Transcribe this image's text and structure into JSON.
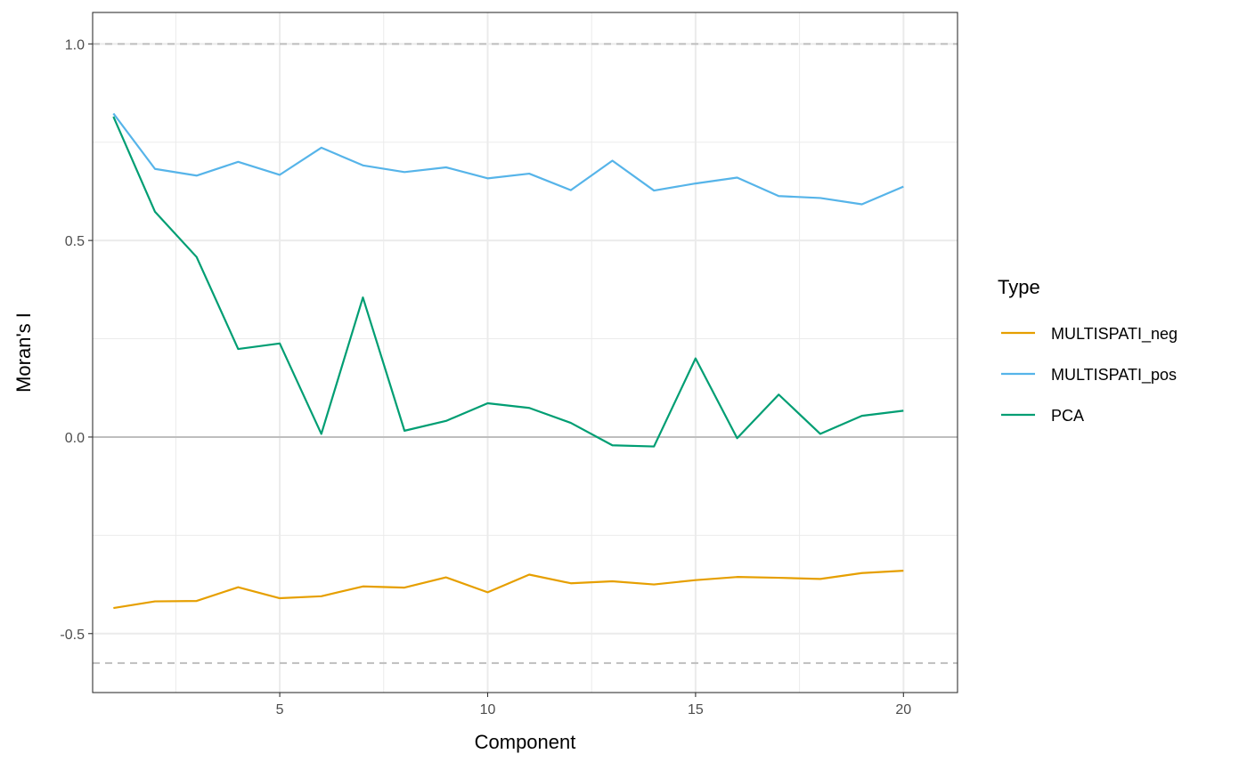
{
  "chart_data": {
    "type": "line",
    "xlabel": "Component",
    "ylabel": "Moran's I",
    "xlim": [
      0.5,
      21.3
    ],
    "ylim": [
      -0.65,
      1.08
    ],
    "x_ticks": [
      5,
      10,
      15,
      20
    ],
    "x_tick_labels": [
      "5",
      "10",
      "15",
      "20"
    ],
    "y_ticks": [
      -0.5,
      0.0,
      0.5,
      1.0
    ],
    "y_tick_labels": [
      "-0.5",
      "0.0",
      "0.5",
      "1.0"
    ],
    "grid": true,
    "reference_lines": [
      {
        "y": 1.0,
        "style": "dashed",
        "color": "#bebebe"
      },
      {
        "y": 0.0,
        "style": "solid",
        "color": "#bebebe"
      },
      {
        "y": -0.575,
        "style": "dashed",
        "color": "#bebebe"
      }
    ],
    "legend": {
      "title": "Type",
      "placement": "right"
    },
    "x": [
      1,
      2,
      3,
      4,
      5,
      6,
      7,
      8,
      9,
      10,
      11,
      12,
      13,
      14,
      15,
      16,
      17,
      18,
      19,
      20
    ],
    "series": [
      {
        "name": "MULTISPATI_neg",
        "color": "#E69F00",
        "values": [
          -0.435,
          -0.418,
          -0.417,
          -0.382,
          -0.41,
          -0.405,
          -0.38,
          -0.383,
          -0.357,
          -0.395,
          -0.35,
          -0.372,
          -0.367,
          -0.375,
          -0.364,
          -0.356,
          -0.358,
          -0.361,
          -0.346,
          -0.34
        ]
      },
      {
        "name": "MULTISPATI_pos",
        "color": "#56B4E9",
        "values": [
          0.823,
          0.682,
          0.665,
          0.7,
          0.667,
          0.736,
          0.691,
          0.674,
          0.686,
          0.658,
          0.67,
          0.628,
          0.703,
          0.627,
          0.645,
          0.66,
          0.613,
          0.608,
          0.592,
          0.637
        ]
      },
      {
        "name": "PCA",
        "color": "#009E73",
        "values": [
          0.815,
          0.573,
          0.458,
          0.224,
          0.238,
          0.008,
          0.355,
          0.016,
          0.041,
          0.086,
          0.074,
          0.036,
          -0.021,
          -0.024,
          0.2,
          -0.003,
          0.108,
          0.008,
          0.054,
          0.067
        ]
      }
    ]
  }
}
